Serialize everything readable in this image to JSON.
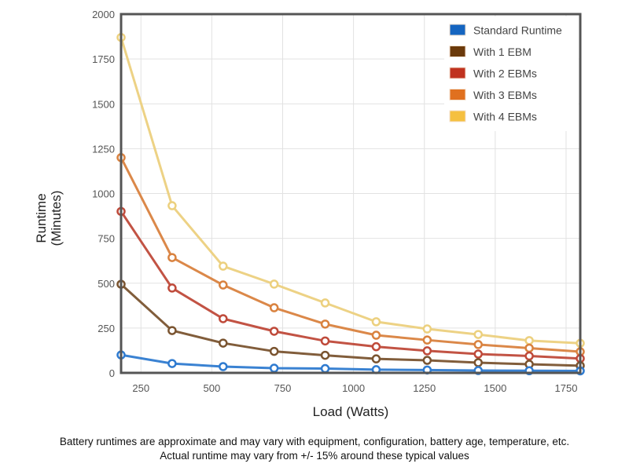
{
  "chart_data": {
    "type": "line",
    "title": "",
    "xlabel": "Load (Watts)",
    "ylabel": [
      "Runtime",
      "(Minutes)"
    ],
    "xlim": [
      180,
      1800
    ],
    "ylim": [
      0,
      2000
    ],
    "x_ticks": [
      250,
      500,
      750,
      1000,
      1250,
      1500,
      1750
    ],
    "y_ticks": [
      0,
      250,
      500,
      750,
      1000,
      1250,
      1500,
      1750,
      2000
    ],
    "grid": true,
    "legend_position": "top-right",
    "x": [
      180,
      360,
      540,
      720,
      900,
      1080,
      1260,
      1440,
      1620,
      1800
    ],
    "series": [
      {
        "name": "Standard Runtime",
        "color": "#1565c0",
        "line_color": "#2f7bd0",
        "values": [
          100,
          52,
          35,
          26,
          24,
          18,
          16,
          13,
          12,
          11
        ]
      },
      {
        "name": "With 1 EBM",
        "color": "#6b3a0b",
        "line_color": "#7a5430",
        "values": [
          494,
          236,
          166,
          120,
          98,
          78,
          70,
          57,
          48,
          40
        ]
      },
      {
        "name": "With 2 EBMs",
        "color": "#c0321f",
        "line_color": "#bf4a3a",
        "values": [
          900,
          473,
          302,
          232,
          178,
          146,
          123,
          105,
          94,
          80
        ]
      },
      {
        "name": "With 3 EBMs",
        "color": "#e0701f",
        "line_color": "#d9823f",
        "values": [
          1200,
          643,
          490,
          363,
          272,
          210,
          183,
          158,
          138,
          118
        ]
      },
      {
        "name": "With 4 EBMs",
        "color": "#f5c040",
        "line_color": "#ecd07e",
        "values": [
          1870,
          932,
          595,
          495,
          390,
          285,
          245,
          214,
          180,
          165
        ]
      }
    ]
  },
  "footnote": {
    "line1": "Battery runtimes are approximate and may vary with equipment, configuration, battery age, temperature, etc.",
    "line2": "Actual runtime may vary from +/- 15% around these typical values"
  }
}
